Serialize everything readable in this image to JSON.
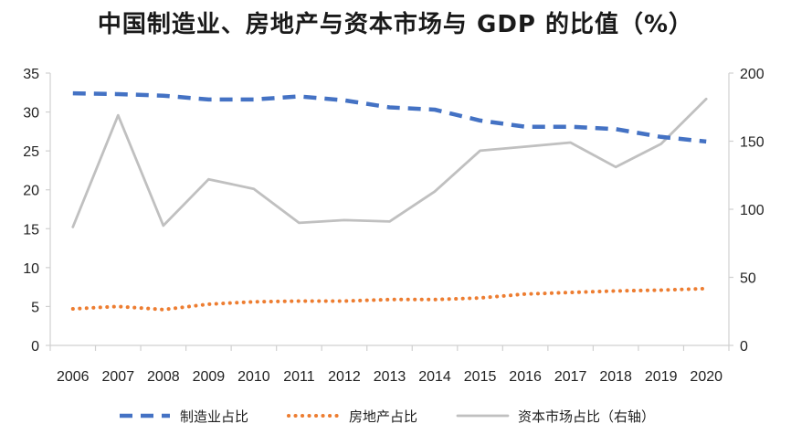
{
  "chart_data": {
    "type": "line",
    "title": "中国制造业、房地产与资本市场与 GDP 的比值（%）",
    "categories": [
      "2006",
      "2007",
      "2008",
      "2009",
      "2010",
      "2011",
      "2012",
      "2013",
      "2014",
      "2015",
      "2016",
      "2017",
      "2018",
      "2019",
      "2020"
    ],
    "left_axis": {
      "ylim": [
        0,
        35
      ],
      "ticks": [
        0,
        5,
        10,
        15,
        20,
        25,
        30,
        35
      ]
    },
    "right_axis": {
      "ylim": [
        0,
        200
      ],
      "ticks": [
        0,
        50,
        100,
        150,
        200
      ]
    },
    "grid": false,
    "legend_position": "bottom",
    "series": [
      {
        "name": "制造业占比",
        "axis": "left",
        "style": "dashed",
        "color": "#4472c4",
        "values": [
          32.4,
          32.3,
          32.1,
          31.6,
          31.6,
          32.0,
          31.5,
          30.6,
          30.3,
          28.9,
          28.1,
          28.1,
          27.8,
          26.8,
          26.2
        ]
      },
      {
        "name": "房地产占比",
        "axis": "left",
        "style": "dotted",
        "color": "#ed7d31",
        "values": [
          4.7,
          5.0,
          4.6,
          5.3,
          5.6,
          5.7,
          5.7,
          5.9,
          5.9,
          6.1,
          6.6,
          6.8,
          7.0,
          7.1,
          7.3
        ]
      },
      {
        "name": "资本市场占比（右轴）",
        "axis": "right",
        "style": "solid",
        "color": "#c0c0c0",
        "values": [
          87,
          169,
          88,
          122,
          115,
          90,
          92,
          91,
          113,
          143,
          146,
          149,
          131,
          148,
          181
        ]
      }
    ]
  }
}
